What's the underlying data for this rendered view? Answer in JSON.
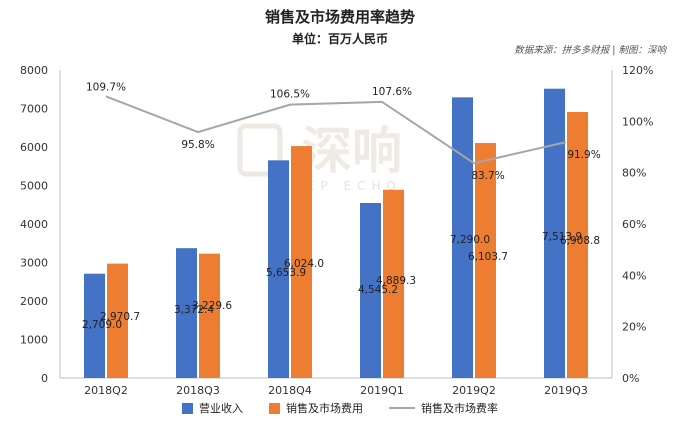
{
  "chart_data": {
    "type": "bar",
    "title": "销售及市场费用率趋势",
    "subtitle": "单位：百万人民币",
    "source": "数据来源：拼多多财报 | 制图：深响",
    "watermark": {
      "main": "深响",
      "sub": "DEEP ECHO"
    },
    "categories": [
      "2018Q2",
      "2018Q3",
      "2018Q4",
      "2019Q1",
      "2019Q2",
      "2019Q3"
    ],
    "series": [
      {
        "name": "营业收入",
        "color": "#4472c4",
        "axis": "left",
        "values": [
          2709.0,
          3372.4,
          5653.9,
          4545.2,
          7290.0,
          7513.9
        ],
        "labels": [
          "2,709.0",
          "3,372.4",
          "5,653.9",
          "4,545.2",
          "7,290.0",
          "7,513.9"
        ]
      },
      {
        "name": "销售及市场费用",
        "color": "#ed7d31",
        "axis": "left",
        "values": [
          2970.7,
          3229.6,
          6024.0,
          4889.3,
          6103.7,
          6908.8
        ],
        "labels": [
          "2,970.7",
          "3,229.6",
          "6,024.0",
          "4,889.3",
          "6,103.7",
          "6,908.8"
        ]
      },
      {
        "name": "销售及市场费率",
        "type": "line",
        "color": "#a6a6a6",
        "axis": "right",
        "values": [
          109.7,
          95.8,
          106.5,
          107.6,
          83.7,
          91.9
        ],
        "labels": [
          "109.7%",
          "95.8%",
          "106.5%",
          "107.6%",
          "83.7%",
          "91.9%"
        ]
      }
    ],
    "y_left": {
      "ylim": [
        0,
        8000
      ],
      "ticks": [
        "0",
        "1000",
        "2000",
        "3000",
        "4000",
        "5000",
        "6000",
        "7000",
        "8000"
      ]
    },
    "y_right": {
      "ylim": [
        0,
        120
      ],
      "ticks": [
        "0%",
        "20%",
        "40%",
        "60%",
        "80%",
        "100%",
        "120%"
      ]
    },
    "legend_position": "bottom"
  }
}
